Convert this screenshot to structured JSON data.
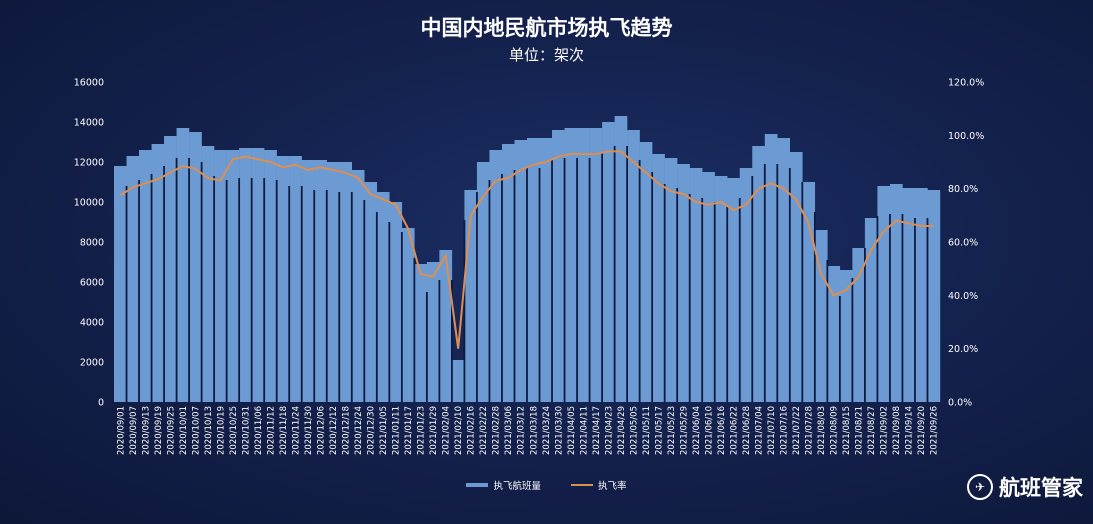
{
  "chart_data": {
    "type": "bar",
    "title": "中国内地民航市场执飞趋势",
    "subtitle": "单位：架次",
    "x": [
      "2020/09/01",
      "2020/09/07",
      "2020/09/13",
      "2020/09/19",
      "2020/09/25",
      "2020/10/01",
      "2020/10/07",
      "2020/10/13",
      "2020/10/19",
      "2020/10/25",
      "2020/10/31",
      "2020/11/06",
      "2020/11/12",
      "2020/11/18",
      "2020/11/24",
      "2020/11/30",
      "2020/12/06",
      "2020/12/12",
      "2020/12/18",
      "2020/12/24",
      "2020/12/30",
      "2021/01/05",
      "2021/01/11",
      "2021/01/17",
      "2021/01/23",
      "2021/01/29",
      "2021/02/04",
      "2021/02/10",
      "2021/02/16",
      "2021/02/22",
      "2021/02/28",
      "2021/03/06",
      "2021/03/12",
      "2021/03/18",
      "2021/03/24",
      "2021/03/30",
      "2021/04/05",
      "2021/04/11",
      "2021/04/17",
      "2021/04/23",
      "2021/04/29",
      "2021/05/05",
      "2021/05/11",
      "2021/05/17",
      "2021/05/23",
      "2021/05/29",
      "2021/06/04",
      "2021/06/10",
      "2021/06/16",
      "2021/06/22",
      "2021/06/28",
      "2021/07/04",
      "2021/07/10",
      "2021/07/16",
      "2021/07/22",
      "2021/07/28",
      "2021/08/03",
      "2021/08/09",
      "2021/08/15",
      "2021/08/21",
      "2021/08/27",
      "2021/09/02",
      "2021/09/08",
      "2021/09/14",
      "2021/09/20",
      "2021/09/26"
    ],
    "series": [
      {
        "name": "执飞航班量",
        "type": "bar",
        "axis": "left",
        "color": "#6c9bd3",
        "values": [
          11800,
          12300,
          12600,
          12900,
          13300,
          13700,
          13500,
          12800,
          12600,
          12600,
          12700,
          12700,
          12600,
          12300,
          12300,
          12100,
          12100,
          12000,
          12000,
          11600,
          11000,
          10500,
          10000,
          8700,
          6900,
          7000,
          7600,
          2100,
          10600,
          12000,
          12600,
          12900,
          13100,
          13200,
          13200,
          13600,
          13700,
          13700,
          13700,
          14000,
          14300,
          13600,
          13000,
          12400,
          12200,
          11900,
          11700,
          11500,
          11300,
          11200,
          11700,
          12800,
          13400,
          13200,
          12500,
          11000,
          8600,
          6800,
          6600,
          7700,
          9200,
          10800,
          10900,
          10700,
          10700,
          10600
        ]
      },
      {
        "name": "执飞率",
        "type": "line",
        "axis": "right",
        "color": "#dd8f52",
        "values": [
          77.5,
          80.5,
          82,
          83.5,
          86,
          88.5,
          87.5,
          84,
          83,
          91,
          92,
          91,
          90,
          88,
          89,
          87,
          88,
          87,
          86,
          84,
          78,
          76,
          74,
          65,
          48,
          47,
          55,
          20,
          70,
          77,
          83,
          84,
          87,
          89,
          90,
          92,
          93,
          93,
          93,
          94,
          94,
          90,
          86,
          82,
          79,
          78,
          75,
          74,
          75,
          72,
          74,
          80,
          82,
          80,
          76,
          67,
          48,
          40,
          42,
          47,
          57,
          64,
          68,
          67,
          66,
          66
        ]
      }
    ],
    "yleft": {
      "ticks": [
        "0",
        "2000",
        "4000",
        "6000",
        "8000",
        "10000",
        "12000",
        "14000",
        "16000"
      ],
      "lim": [
        0,
        16000
      ]
    },
    "yright": {
      "ticks": [
        "0.0%",
        "20.0%",
        "40.0%",
        "60.0%",
        "80.0%",
        "100.0%",
        "120.0%"
      ],
      "lim": [
        0,
        120
      ]
    },
    "legend_position": "bottom-center",
    "grid": false
  },
  "brand": {
    "name": "航班管家",
    "logo_icon": "plane-logo-icon"
  }
}
